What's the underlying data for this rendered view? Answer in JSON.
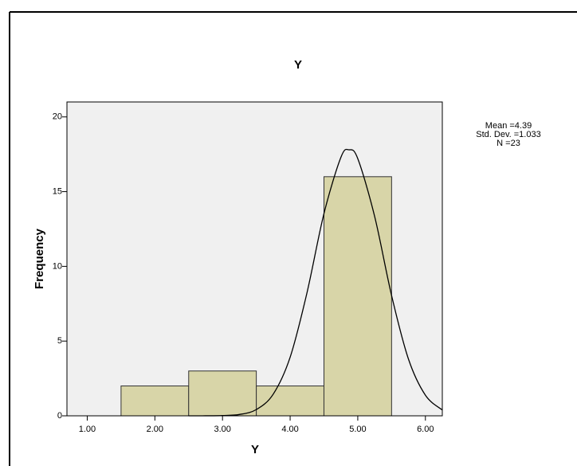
{
  "chart_data": {
    "type": "histogram",
    "title": "Y",
    "x_label": "Y",
    "y_label": "Frequency",
    "stats": [
      "Mean =4.39",
      "Std. Dev. =1.033",
      "N =23"
    ],
    "bins": [
      1.5,
      2.5,
      3.5,
      4.5,
      5.5
    ],
    "values": [
      2,
      3,
      2,
      16
    ],
    "color": "#d8d5a8",
    "curve": {
      "color": "#000000",
      "x": [
        2.5,
        2.75,
        3.0,
        3.25,
        3.5,
        3.75,
        4.0,
        4.25,
        4.5,
        4.75,
        4.87,
        5.0,
        5.25,
        5.5,
        5.75,
        6.0,
        6.25
      ],
      "y": [
        0,
        0.002,
        0.016,
        0.09,
        0.42,
        1.45,
        3.92,
        8.25,
        13.53,
        17.29,
        17.8,
        17.21,
        13.33,
        8.05,
        3.79,
        1.38,
        0.39
      ]
    },
    "xlim": [
      0.7,
      6.25
    ],
    "ylim": [
      0,
      21
    ],
    "xticks": [
      {
        "value": 1,
        "label": "1.00"
      },
      {
        "value": 2,
        "label": "2.00"
      },
      {
        "value": 3,
        "label": "3.00"
      },
      {
        "value": 4,
        "label": "4.00"
      },
      {
        "value": 5,
        "label": "5.00"
      },
      {
        "value": 6,
        "label": "6.00"
      }
    ],
    "yticks": [
      0,
      5,
      10,
      15,
      20
    ],
    "background": "#f0f0f0"
  }
}
